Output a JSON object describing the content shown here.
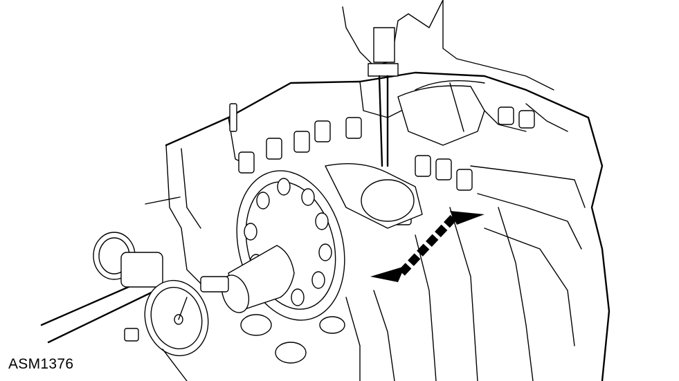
{
  "figure": {
    "id_label": "ASM1376"
  },
  "icons": {
    "illustration": "engine-camshaft-thrust-clearance-illustration",
    "dial_indicator": "dial-gauge-icon",
    "arrow": "double-headed-arrow-icon"
  },
  "colors": {
    "line": "#000000",
    "background": "#ffffff"
  }
}
